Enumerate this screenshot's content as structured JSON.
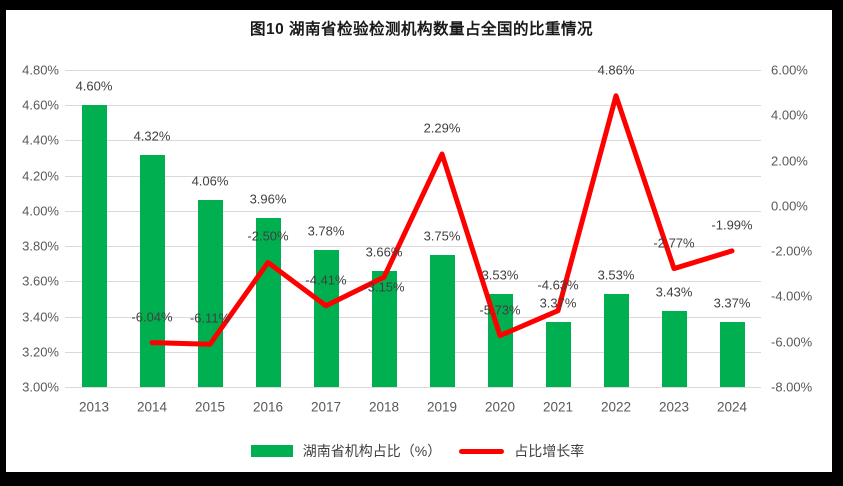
{
  "title": "图10  湖南省检验检测机构数量占全国的比重情况",
  "legend": {
    "bar_label": "湖南省机构占比（%）",
    "line_label": "占比增长率"
  },
  "colors": {
    "bar": "#00B050",
    "line": "#FF0000",
    "grid": "#D9D9D9",
    "axis_text": "#595959",
    "data_label_text": "#404040",
    "frame": "#000000",
    "background": "#FFFFFF"
  },
  "chart_data": {
    "type": "combo",
    "title": "图10  湖南省检验检测机构数量占全国的比重情况",
    "categories": [
      "2013",
      "2014",
      "2015",
      "2016",
      "2017",
      "2018",
      "2019",
      "2020",
      "2021",
      "2022",
      "2023",
      "2024"
    ],
    "series": [
      {
        "name": "湖南省机构占比（%）",
        "type": "bar",
        "axis": "left",
        "values": [
          4.6,
          4.32,
          4.06,
          3.96,
          3.78,
          3.66,
          3.75,
          3.53,
          3.37,
          3.53,
          3.43,
          3.37
        ],
        "labels": [
          "4.60%",
          "4.32%",
          "4.06%",
          "3.96%",
          "3.78%",
          "3.66%",
          "3.75%",
          "3.53%",
          "3.37%",
          "3.53%",
          "3.43%",
          "3.37%"
        ]
      },
      {
        "name": "占比增长率",
        "type": "line",
        "axis": "right",
        "values": [
          null,
          -6.04,
          -6.11,
          -2.5,
          -4.41,
          -3.15,
          2.29,
          -5.73,
          -4.63,
          4.86,
          -2.77,
          -1.99
        ],
        "labels": [
          null,
          "-6.04%",
          "-6.11%",
          "-2.50%",
          "-4.41%",
          "-3.15%",
          "2.29%",
          "-5.73%",
          "-4.63%",
          "4.86%",
          "-2.77%",
          "-1.99%"
        ]
      }
    ],
    "left_axis": {
      "min": 3.0,
      "max": 4.8,
      "tick_step": 0.2,
      "ticks": [
        "4.80%",
        "4.60%",
        "4.40%",
        "4.20%",
        "4.00%",
        "3.80%",
        "3.60%",
        "3.40%",
        "3.20%",
        "3.00%"
      ]
    },
    "right_axis": {
      "min": -8.0,
      "max": 6.0,
      "tick_step": 2.0,
      "ticks": [
        "6.00%",
        "4.00%",
        "2.00%",
        "0.00%",
        "-2.00%",
        "-4.00%",
        "-6.00%",
        "-8.00%"
      ]
    },
    "grid": true,
    "legend_position": "bottom"
  }
}
